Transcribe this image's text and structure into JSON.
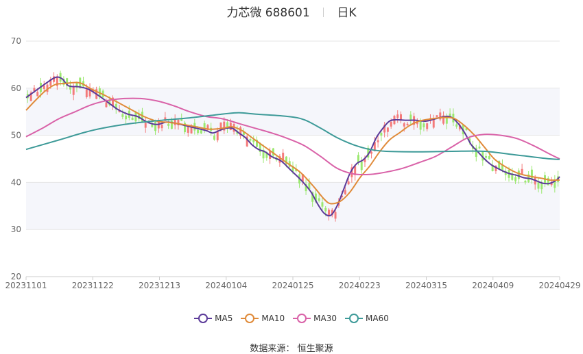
{
  "title": {
    "name": "力芯微 688601",
    "period": "日K"
  },
  "source": {
    "label": "数据来源：",
    "value": "恒生聚源"
  },
  "colors": {
    "up": "#f47a7a",
    "down": "#9be870",
    "band": "#f5f6fb",
    "grid": "#e6e6e6"
  },
  "chart_data": {
    "type": "candlestick",
    "ylim": [
      20,
      70
    ],
    "yticks": [
      20,
      30,
      40,
      50,
      60,
      70
    ],
    "xticks": [
      "20231101",
      "20231122",
      "20231213",
      "20240104",
      "20240125",
      "20240223",
      "20240315",
      "20240409",
      "20240429"
    ],
    "series": [
      {
        "name": "MA5",
        "color": "#5b3a99",
        "points": [
          [
            0,
            58.0
          ],
          [
            3,
            59.5
          ],
          [
            6,
            61.0
          ],
          [
            9,
            62.3
          ],
          [
            11,
            62.0
          ],
          [
            13,
            60.5
          ],
          [
            16,
            60.3
          ],
          [
            19,
            59.8
          ],
          [
            22,
            58.5
          ],
          [
            25,
            57.0
          ],
          [
            28,
            55.5
          ],
          [
            31,
            54.5
          ],
          [
            34,
            54.0
          ],
          [
            37,
            52.8
          ],
          [
            40,
            52.3
          ],
          [
            43,
            52.8
          ],
          [
            46,
            52.5
          ],
          [
            49,
            52.0
          ],
          [
            52,
            51.5
          ],
          [
            55,
            51.0
          ],
          [
            57,
            50.5
          ],
          [
            59,
            51.0
          ],
          [
            61,
            51.5
          ],
          [
            63,
            51.5
          ],
          [
            65,
            50.5
          ],
          [
            67,
            49.5
          ],
          [
            69,
            48.0
          ],
          [
            71,
            47.0
          ],
          [
            73,
            46.5
          ],
          [
            75,
            45.5
          ],
          [
            78,
            44.5
          ],
          [
            81,
            42.5
          ],
          [
            84,
            40.5
          ],
          [
            87,
            38.0
          ],
          [
            89,
            35.5
          ],
          [
            91,
            33.5
          ],
          [
            93,
            33.0
          ],
          [
            95,
            35.0
          ],
          [
            97,
            38.5
          ],
          [
            99,
            42.0
          ],
          [
            101,
            44.0
          ],
          [
            103,
            44.8
          ],
          [
            105,
            46.5
          ],
          [
            107,
            49.5
          ],
          [
            109,
            51.5
          ],
          [
            111,
            53.0
          ],
          [
            113,
            53.3
          ],
          [
            116,
            53.2
          ],
          [
            119,
            53.2
          ],
          [
            122,
            53.0
          ],
          [
            125,
            53.5
          ],
          [
            128,
            54.0
          ],
          [
            130,
            53.8
          ],
          [
            132,
            52.5
          ],
          [
            134,
            50.5
          ],
          [
            136,
            48.0
          ],
          [
            138,
            46.5
          ],
          [
            140,
            45.0
          ],
          [
            142,
            43.8
          ],
          [
            144,
            43.0
          ],
          [
            146,
            42.3
          ],
          [
            148,
            41.8
          ],
          [
            150,
            41.5
          ],
          [
            152,
            41.0
          ],
          [
            154,
            40.8
          ],
          [
            156,
            40.3
          ],
          [
            158,
            39.8
          ],
          [
            160,
            39.8
          ],
          [
            162,
            40.5
          ],
          [
            163,
            41.2
          ]
        ]
      },
      {
        "name": "MA10",
        "color": "#e08b3a",
        "points": [
          [
            0,
            55.3
          ],
          [
            3,
            57.5
          ],
          [
            6,
            59.5
          ],
          [
            9,
            60.8
          ],
          [
            12,
            61.0
          ],
          [
            15,
            61.2
          ],
          [
            17,
            61.0
          ],
          [
            20,
            59.8
          ],
          [
            24,
            58.5
          ],
          [
            28,
            57.0
          ],
          [
            32,
            55.5
          ],
          [
            36,
            54.0
          ],
          [
            40,
            53.0
          ],
          [
            44,
            52.7
          ],
          [
            48,
            52.3
          ],
          [
            52,
            51.8
          ],
          [
            56,
            51.3
          ],
          [
            60,
            51.5
          ],
          [
            63,
            51.8
          ],
          [
            66,
            51.0
          ],
          [
            69,
            49.5
          ],
          [
            72,
            48.0
          ],
          [
            76,
            46.0
          ],
          [
            80,
            44.0
          ],
          [
            84,
            42.0
          ],
          [
            88,
            39.0
          ],
          [
            91,
            36.5
          ],
          [
            93,
            35.5
          ],
          [
            96,
            36.0
          ],
          [
            99,
            38.0
          ],
          [
            102,
            41.0
          ],
          [
            105,
            43.5
          ],
          [
            108,
            46.5
          ],
          [
            111,
            49.0
          ],
          [
            114,
            50.5
          ],
          [
            117,
            52.0
          ],
          [
            120,
            53.0
          ],
          [
            124,
            53.5
          ],
          [
            128,
            53.8
          ],
          [
            131,
            53.5
          ],
          [
            134,
            52.0
          ],
          [
            137,
            50.0
          ],
          [
            140,
            47.5
          ],
          [
            143,
            45.0
          ],
          [
            146,
            43.5
          ],
          [
            150,
            42.0
          ],
          [
            154,
            41.3
          ],
          [
            158,
            40.8
          ],
          [
            160,
            40.5
          ],
          [
            163,
            40.5
          ]
        ]
      },
      {
        "name": "MA30",
        "color": "#d962a8",
        "points": [
          [
            0,
            49.7
          ],
          [
            5,
            51.5
          ],
          [
            10,
            53.5
          ],
          [
            15,
            55.0
          ],
          [
            20,
            56.5
          ],
          [
            25,
            57.4
          ],
          [
            30,
            57.8
          ],
          [
            35,
            57.8
          ],
          [
            40,
            57.3
          ],
          [
            45,
            56.3
          ],
          [
            50,
            55.0
          ],
          [
            55,
            54.0
          ],
          [
            60,
            53.5
          ],
          [
            65,
            52.5
          ],
          [
            70,
            51.5
          ],
          [
            75,
            50.5
          ],
          [
            80,
            49.3
          ],
          [
            85,
            47.8
          ],
          [
            90,
            45.5
          ],
          [
            95,
            43.0
          ],
          [
            100,
            41.8
          ],
          [
            105,
            41.7
          ],
          [
            110,
            42.2
          ],
          [
            115,
            43.0
          ],
          [
            120,
            44.2
          ],
          [
            125,
            45.5
          ],
          [
            130,
            47.5
          ],
          [
            135,
            49.5
          ],
          [
            140,
            50.2
          ],
          [
            145,
            50.0
          ],
          [
            150,
            49.3
          ],
          [
            155,
            47.8
          ],
          [
            160,
            46.0
          ],
          [
            163,
            45.0
          ]
        ]
      },
      {
        "name": "MA60",
        "color": "#3d9a98",
        "points": [
          [
            0,
            47.0
          ],
          [
            10,
            49.0
          ],
          [
            20,
            51.0
          ],
          [
            30,
            52.3
          ],
          [
            40,
            53.1
          ],
          [
            50,
            53.7
          ],
          [
            60,
            54.5
          ],
          [
            65,
            54.8
          ],
          [
            70,
            54.5
          ],
          [
            80,
            54.0
          ],
          [
            85,
            53.3
          ],
          [
            90,
            51.5
          ],
          [
            95,
            49.5
          ],
          [
            100,
            48.0
          ],
          [
            105,
            47.0
          ],
          [
            110,
            46.6
          ],
          [
            120,
            46.5
          ],
          [
            130,
            46.6
          ],
          [
            140,
            46.6
          ],
          [
            150,
            45.8
          ],
          [
            160,
            45.0
          ],
          [
            163,
            44.9
          ]
        ]
      }
    ]
  }
}
